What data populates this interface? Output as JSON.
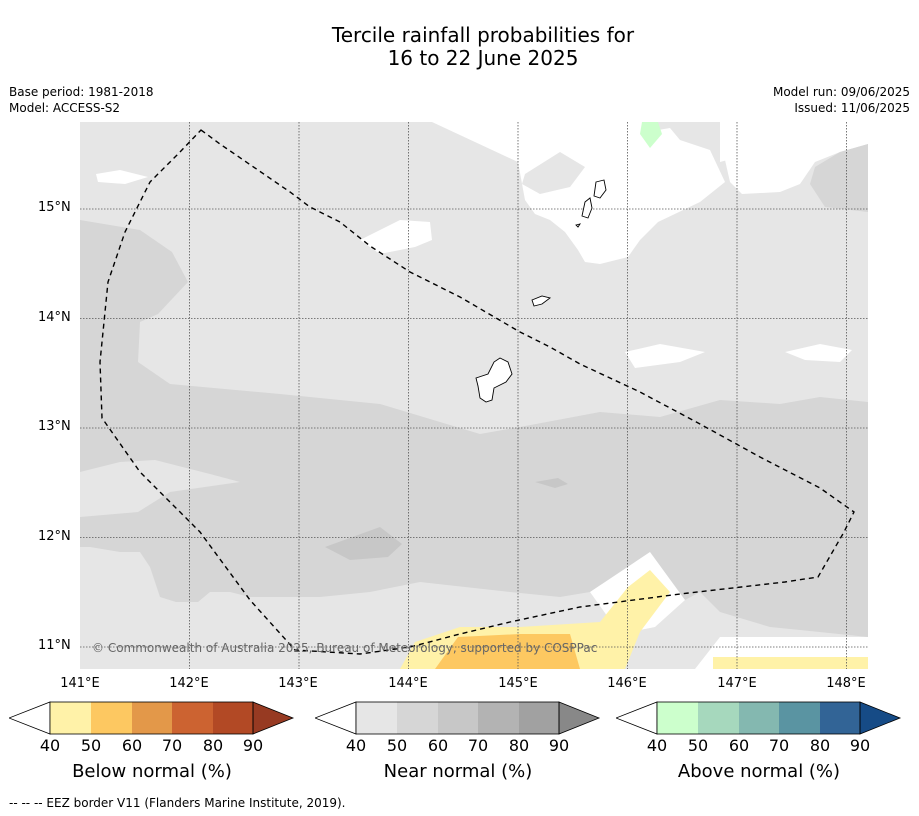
{
  "title": {
    "line1": "Tercile rainfall probabilities for",
    "line2": "16 to 22 June 2025"
  },
  "meta": {
    "base_period": "Base period: 1981-2018",
    "model": "Model: ACCESS-S2",
    "model_run": "Model run: 09/06/2025",
    "issued": "Issued: 11/06/2025"
  },
  "axes": {
    "lat_labels": [
      "15°N",
      "14°N",
      "13°N",
      "12°N",
      "11°N"
    ],
    "lon_labels": [
      "141°E",
      "142°E",
      "143°E",
      "144°E",
      "145°E",
      "146°E",
      "147°E",
      "148°E"
    ]
  },
  "copyright": "© Commonwealth of Australia 2025, Bureau of Meteorology, supported by COSPPac",
  "colorbars": [
    {
      "name": "below",
      "title": "Below normal (%)",
      "ticks": [
        "40",
        "50",
        "60",
        "70",
        "80",
        "90"
      ],
      "colors": [
        "#fff2a8",
        "#fdc861",
        "#e39849",
        "#cc6331",
        "#b24925",
        "#973a22"
      ]
    },
    {
      "name": "near",
      "title": "Near normal (%)",
      "ticks": [
        "40",
        "50",
        "60",
        "70",
        "80",
        "90"
      ],
      "colors": [
        "#e6e6e6",
        "#d6d6d6",
        "#c7c7c7",
        "#b3b3b3",
        "#a1a1a1",
        "#888888"
      ]
    },
    {
      "name": "above",
      "title": "Above normal (%)",
      "ticks": [
        "40",
        "50",
        "60",
        "70",
        "80",
        "90"
      ],
      "colors": [
        "#ccffcc",
        "#a6d8bd",
        "#84b8b0",
        "#5a94a2",
        "#326496",
        "#164b86"
      ]
    }
  ],
  "footer": "--  --  -- EEZ border V11 (Flanders Marine Institute, 2019)."
}
